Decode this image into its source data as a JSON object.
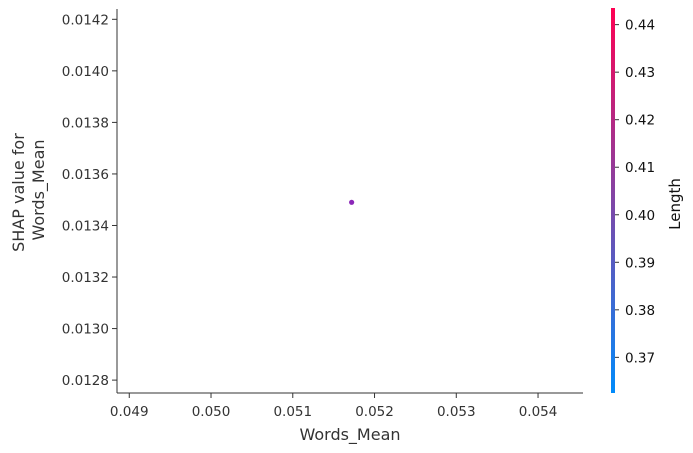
{
  "chart_data": {
    "type": "scatter",
    "xlabel": "Words_Mean",
    "ylabel_lines": [
      "SHAP value for",
      "Words_Mean"
    ],
    "xlim": [
      0.04885,
      0.05455
    ],
    "ylim": [
      0.01275,
      0.01424
    ],
    "xticks": [
      0.049,
      0.05,
      0.051,
      0.052,
      0.053,
      0.054
    ],
    "xtick_labels": [
      "0.049",
      "0.050",
      "0.051",
      "0.052",
      "0.053",
      "0.054"
    ],
    "yticks": [
      0.0128,
      0.013,
      0.0132,
      0.0134,
      0.0136,
      0.0138,
      0.014,
      0.0142
    ],
    "ytick_labels": [
      "0.0128",
      "0.0130",
      "0.0132",
      "0.0134",
      "0.0136",
      "0.0138",
      "0.0140",
      "0.0142"
    ],
    "points": [
      {
        "x": 0.05172,
        "y": 0.01349,
        "color_value": 0.41
      }
    ],
    "point_color": "#8b27b8",
    "colorbar": {
      "label": "Length",
      "range": [
        0.3625,
        0.4435
      ],
      "ticks": [
        0.37,
        0.38,
        0.39,
        0.4,
        0.41,
        0.42,
        0.43,
        0.44
      ],
      "tick_labels": [
        "0.37",
        "0.38",
        "0.39",
        "0.40",
        "0.41",
        "0.42",
        "0.43",
        "0.44"
      ],
      "color_low": "#008bfb",
      "color_high": "#ff0052"
    },
    "grid": false,
    "legend": "none"
  }
}
